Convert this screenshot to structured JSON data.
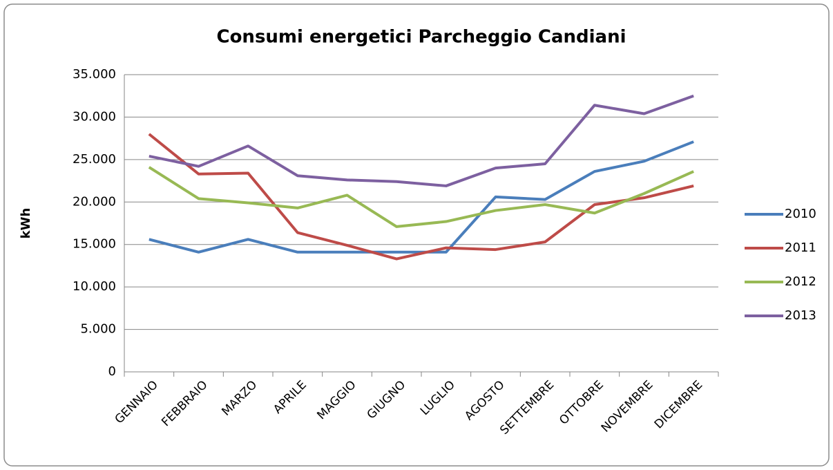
{
  "chart_data": {
    "type": "line",
    "title": "Consumi energetici Parcheggio Candiani",
    "y_label": "kWh",
    "categories": [
      "GENNAIO",
      "FEBBRAIO",
      "MARZO",
      "APRILE",
      "MAGGIO",
      "GIUGNO",
      "LUGLIO",
      "AGOSTO",
      "SETTEMBRE",
      "OTTOBRE",
      "NOVEMBRE",
      "DICEMBRE"
    ],
    "series": [
      {
        "name": "2010",
        "color": "#4a7ebb",
        "values": [
          15600,
          14100,
          15600,
          14100,
          14100,
          14100,
          14100,
          20600,
          20300,
          23600,
          24800,
          27100
        ]
      },
      {
        "name": "2011",
        "color": "#be4b48",
        "values": [
          28000,
          23300,
          23400,
          16400,
          14900,
          13300,
          14600,
          14400,
          15300,
          19700,
          20500,
          21900
        ]
      },
      {
        "name": "2012",
        "color": "#98b954",
        "values": [
          24100,
          20400,
          19900,
          19300,
          20800,
          17100,
          17700,
          19000,
          19700,
          18700,
          21000,
          23600
        ]
      },
      {
        "name": "2013",
        "color": "#7d60a0",
        "values": [
          25400,
          24200,
          26600,
          23100,
          22600,
          22400,
          21900,
          24000,
          24500,
          31400,
          30400,
          32500
        ]
      }
    ],
    "ylim": [
      0,
      35000
    ],
    "yticks": [
      0,
      {
        "value": 5000,
        "label": "5.000"
      },
      {
        "value": 10000,
        "label": "10.000"
      },
      {
        "value": 15000,
        "label": "15.000"
      },
      {
        "value": 20000,
        "label": "20.000"
      },
      {
        "value": 25000,
        "label": "25.000"
      },
      {
        "value": 30000,
        "label": "30.000"
      },
      {
        "value": 35000,
        "label": "35.000"
      }
    ],
    "grid": true,
    "legend": "right"
  }
}
